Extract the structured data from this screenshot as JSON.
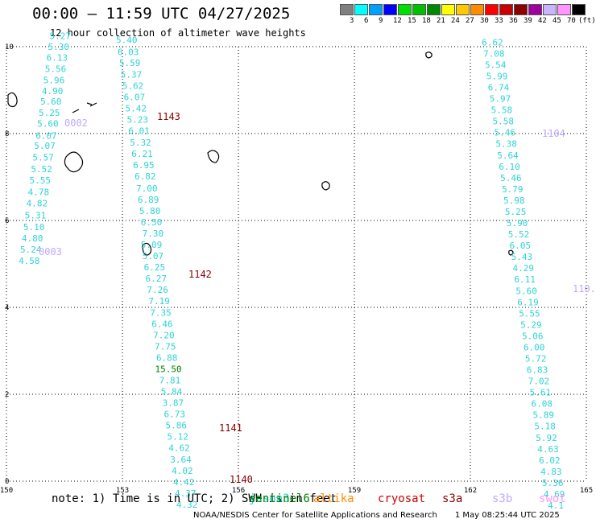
{
  "title": "00:00 – 11:59 UTC 04/27/2025",
  "subtitle": "12 hour collection of altimeter wave heights",
  "colorbar": {
    "colors": [
      "#808080",
      "#00ffff",
      "#00a0ff",
      "#0000ff",
      "#00e000",
      "#00c000",
      "#008800",
      "#ffff00",
      "#ffc800",
      "#ff8c00",
      "#ff0000",
      "#c80000",
      "#8c0000",
      "#a000a0",
      "#c8b4ff",
      "#ff96ff",
      "#000000"
    ],
    "labels": [
      "3",
      "6",
      "9",
      "12",
      "15",
      "18",
      "21",
      "24",
      "27",
      "30",
      "33",
      "36",
      "39",
      "42",
      "45",
      "70",
      "(ft)"
    ]
  },
  "axes": {
    "x_ticks": [
      "150",
      "153",
      "156",
      "159",
      "162",
      "165"
    ],
    "y_ticks": [
      "0",
      "2",
      "4",
      "6",
      "8",
      "10"
    ],
    "x_range": [
      150,
      165
    ],
    "y_range": [
      0,
      10
    ]
  },
  "satellite_colors": {
    "jason3": "#2fd3d3",
    "sentinel6": "#008000",
    "altika": "#ff8c00",
    "cryosat": "#cc0000",
    "s3a": "#8b0000",
    "s3b": "#c0a8ff",
    "swot": "#ff96ff"
  },
  "tracks": [
    {
      "name": "track-far-left",
      "color": "jason3",
      "label": "0002",
      "label_color": "s3b",
      "points": [
        {
          "x": 151.39,
          "y": 10.18,
          "v": "5.27"
        },
        {
          "x": 151.35,
          "y": 9.93,
          "v": "5.30"
        },
        {
          "x": 151.31,
          "y": 9.68,
          "v": "6.13"
        },
        {
          "x": 151.27,
          "y": 9.42,
          "v": "5.56"
        },
        {
          "x": 151.23,
          "y": 9.16,
          "v": "5.96"
        },
        {
          "x": 151.19,
          "y": 8.91,
          "v": "4.90"
        },
        {
          "x": 151.15,
          "y": 8.67,
          "v": "5.60"
        },
        {
          "x": 151.11,
          "y": 8.41,
          "v": "5.25"
        },
        {
          "x": 151.07,
          "y": 8.16,
          "v": "5.60"
        },
        {
          "x": 151.03,
          "y": 7.88,
          "v": "6.07"
        },
        {
          "x": 150.99,
          "y": 7.65,
          "v": "5.07"
        },
        {
          "x": 150.95,
          "y": 7.38,
          "v": "5.57"
        },
        {
          "x": 150.91,
          "y": 7.11,
          "v": "5.52"
        },
        {
          "x": 150.87,
          "y": 6.85,
          "v": "5.55"
        },
        {
          "x": 150.83,
          "y": 6.58,
          "v": "4.78"
        },
        {
          "x": 150.79,
          "y": 6.32,
          "v": "4.82"
        },
        {
          "x": 150.75,
          "y": 6.05,
          "v": "5.31"
        },
        {
          "x": 150.71,
          "y": 5.78,
          "v": "5.10"
        },
        {
          "x": 150.67,
          "y": 5.52,
          "v": "4.80"
        },
        {
          "x": 150.63,
          "y": 5.26,
          "v": "5.24"
        },
        {
          "x": 150.59,
          "y": 5.0,
          "v": "4.58"
        }
      ]
    },
    {
      "name": "track-0003",
      "color": "jason3",
      "label": "0003",
      "label_color": "s3b",
      "points": []
    },
    {
      "name": "track-center-upper",
      "color": "jason3",
      "label": "1143",
      "label_color": "s3a",
      "points": [
        {
          "x": 153.11,
          "y": 10.08,
          "v": "5.40"
        },
        {
          "x": 153.15,
          "y": 9.81,
          "v": "6.03"
        },
        {
          "x": 153.19,
          "y": 9.56,
          "v": "5.59"
        },
        {
          "x": 153.23,
          "y": 9.29,
          "v": "5.37"
        },
        {
          "x": 153.27,
          "y": 9.03,
          "v": "5.62"
        },
        {
          "x": 153.31,
          "y": 8.77,
          "v": "6.07"
        },
        {
          "x": 153.35,
          "y": 8.51,
          "v": "5.42"
        },
        {
          "x": 153.39,
          "y": 8.25,
          "v": "5.23"
        },
        {
          "x": 153.43,
          "y": 7.99,
          "v": "6.01"
        },
        {
          "x": 153.47,
          "y": 7.72,
          "v": "5.32"
        },
        {
          "x": 153.51,
          "y": 7.46,
          "v": "6.21"
        },
        {
          "x": 153.55,
          "y": 7.2,
          "v": "6.95"
        },
        {
          "x": 153.59,
          "y": 6.94,
          "v": "6.82"
        },
        {
          "x": 153.63,
          "y": 6.67,
          "v": "7.00"
        },
        {
          "x": 153.67,
          "y": 6.41,
          "v": "6.89"
        },
        {
          "x": 153.71,
          "y": 6.15,
          "v": "5.80"
        },
        {
          "x": 153.75,
          "y": 5.89,
          "v": "6.50"
        }
      ]
    },
    {
      "name": "track-center-middle",
      "color": "jason3",
      "label": "1142",
      "label_color": "s3a",
      "points": [
        {
          "x": 153.79,
          "y": 5.63,
          "v": "7.30"
        },
        {
          "x": 153.75,
          "y": 5.37,
          "v": "5.09"
        },
        {
          "x": 153.79,
          "y": 5.11,
          "v": "5.07"
        },
        {
          "x": 153.83,
          "y": 4.85,
          "v": "6.25"
        },
        {
          "x": 153.87,
          "y": 4.59,
          "v": "6.27"
        },
        {
          "x": 153.91,
          "y": 4.33,
          "v": "7.26"
        },
        {
          "x": 153.95,
          "y": 4.07,
          "v": "7.19"
        },
        {
          "x": 153.99,
          "y": 3.81,
          "v": "7.35"
        },
        {
          "x": 154.03,
          "y": 3.55,
          "v": "6.46"
        },
        {
          "x": 154.07,
          "y": 3.29,
          "v": "7.20"
        },
        {
          "x": 154.11,
          "y": 3.03,
          "v": "7.75"
        },
        {
          "x": 154.15,
          "y": 2.77,
          "v": "6.88"
        },
        {
          "x": 154.19,
          "y": 2.51,
          "v": "15.50",
          "c": "sentinel6"
        },
        {
          "x": 154.23,
          "y": 2.25,
          "v": "7.81"
        },
        {
          "x": 154.27,
          "y": 1.99,
          "v": "5.84"
        },
        {
          "x": 154.31,
          "y": 1.73,
          "v": "3.87"
        }
      ]
    },
    {
      "name": "track-center-lower",
      "color": "jason3",
      "label": "1141",
      "label_color": "s3a",
      "points": [
        {
          "x": 154.35,
          "y": 1.47,
          "v": "6.73"
        },
        {
          "x": 154.39,
          "y": 1.21,
          "v": "5.86"
        },
        {
          "x": 154.43,
          "y": 0.95,
          "v": "5.12"
        },
        {
          "x": 154.47,
          "y": 0.69,
          "v": "4.62"
        },
        {
          "x": 154.51,
          "y": 0.43,
          "v": "3.64"
        },
        {
          "x": 154.55,
          "y": 0.17,
          "v": "4.02"
        },
        {
          "x": 154.59,
          "y": -0.09,
          "v": "4.42"
        },
        {
          "x": 154.63,
          "y": -0.35,
          "v": "4.37"
        },
        {
          "x": 154.67,
          "y": -0.61,
          "v": "4.32"
        }
      ]
    },
    {
      "name": "track-center-bottom",
      "color": "jason3",
      "label": "1140",
      "label_color": "s3a",
      "points": []
    },
    {
      "name": "track-right",
      "color": "jason3",
      "label": "1104",
      "label_color": "s3b",
      "points": [
        {
          "x": 162.57,
          "y": 10.03,
          "v": "6.62"
        },
        {
          "x": 162.61,
          "y": 9.77,
          "v": "7.08"
        },
        {
          "x": 162.65,
          "y": 9.51,
          "v": "5.54"
        },
        {
          "x": 162.69,
          "y": 9.25,
          "v": "5.99"
        },
        {
          "x": 162.73,
          "y": 8.99,
          "v": "6.74"
        },
        {
          "x": 162.77,
          "y": 8.73,
          "v": "5.97"
        },
        {
          "x": 162.81,
          "y": 8.47,
          "v": "5.58"
        },
        {
          "x": 162.85,
          "y": 8.21,
          "v": "5.58"
        },
        {
          "x": 162.89,
          "y": 7.95,
          "v": "5.46"
        },
        {
          "x": 162.93,
          "y": 7.69,
          "v": "5.38"
        },
        {
          "x": 162.97,
          "y": 7.43,
          "v": "5.64"
        },
        {
          "x": 163.01,
          "y": 7.17,
          "v": "6.10"
        },
        {
          "x": 163.05,
          "y": 6.91,
          "v": "5.46"
        },
        {
          "x": 163.09,
          "y": 6.65,
          "v": "5.79"
        },
        {
          "x": 163.13,
          "y": 6.39,
          "v": "5.98"
        },
        {
          "x": 163.17,
          "y": 6.13,
          "v": "5.25"
        },
        {
          "x": 163.21,
          "y": 5.87,
          "v": "5.90"
        },
        {
          "x": 163.25,
          "y": 5.61,
          "v": "5.52"
        },
        {
          "x": 163.29,
          "y": 5.35,
          "v": "6.05"
        },
        {
          "x": 163.33,
          "y": 5.09,
          "v": "5.43"
        },
        {
          "x": 163.37,
          "y": 4.83,
          "v": "4.29"
        },
        {
          "x": 163.41,
          "y": 4.57,
          "v": "6.11"
        },
        {
          "x": 163.45,
          "y": 4.31,
          "v": "5.60"
        },
        {
          "x": 163.49,
          "y": 4.05,
          "v": "6.19"
        },
        {
          "x": 163.53,
          "y": 3.79,
          "v": "5.55"
        },
        {
          "x": 163.57,
          "y": 3.53,
          "v": "5.29"
        },
        {
          "x": 163.61,
          "y": 3.27,
          "v": "5.06"
        },
        {
          "x": 163.65,
          "y": 3.01,
          "v": "6.00"
        },
        {
          "x": 163.69,
          "y": 2.75,
          "v": "5.72"
        },
        {
          "x": 163.73,
          "y": 2.49,
          "v": "6.83"
        },
        {
          "x": 163.77,
          "y": 2.23,
          "v": "7.02"
        },
        {
          "x": 163.81,
          "y": 1.97,
          "v": "5.61"
        },
        {
          "x": 163.85,
          "y": 1.71,
          "v": "6.08"
        },
        {
          "x": 163.89,
          "y": 1.45,
          "v": "5.89"
        },
        {
          "x": 163.93,
          "y": 1.19,
          "v": "5.18"
        },
        {
          "x": 163.97,
          "y": 0.93,
          "v": "5.92"
        },
        {
          "x": 164.01,
          "y": 0.67,
          "v": "4.63"
        },
        {
          "x": 164.05,
          "y": 0.41,
          "v": "6.02"
        },
        {
          "x": 164.09,
          "y": 0.15,
          "v": "4.83"
        },
        {
          "x": 164.13,
          "y": -0.11,
          "v": "5.36"
        },
        {
          "x": 164.17,
          "y": -0.37,
          "v": "4.69"
        },
        {
          "x": 164.21,
          "y": -0.63,
          "v": "4.1"
        }
      ]
    },
    {
      "name": "track-right-lower",
      "color": "jason3",
      "label": "110.",
      "label_color": "s3b",
      "points": []
    }
  ],
  "note": "note: 1) Time is in UTC; 2) SWH is in feet",
  "legend": [
    {
      "key": "jason3",
      "label": "jason3"
    },
    {
      "key": "sentinel6",
      "label": "sentinel6"
    },
    {
      "key": "altika",
      "label": "altika"
    },
    {
      "key": "cryosat",
      "label": "cryosat"
    },
    {
      "key": "s3a",
      "label": "s3a"
    },
    {
      "key": "s3b",
      "label": "s3b"
    },
    {
      "key": "swot",
      "label": "swot"
    }
  ],
  "footer": {
    "credit": "NOAA/NESDIS Center for Satellite Applications and Research",
    "timestamp": "1 May 08:25:44 UTC 2025"
  }
}
